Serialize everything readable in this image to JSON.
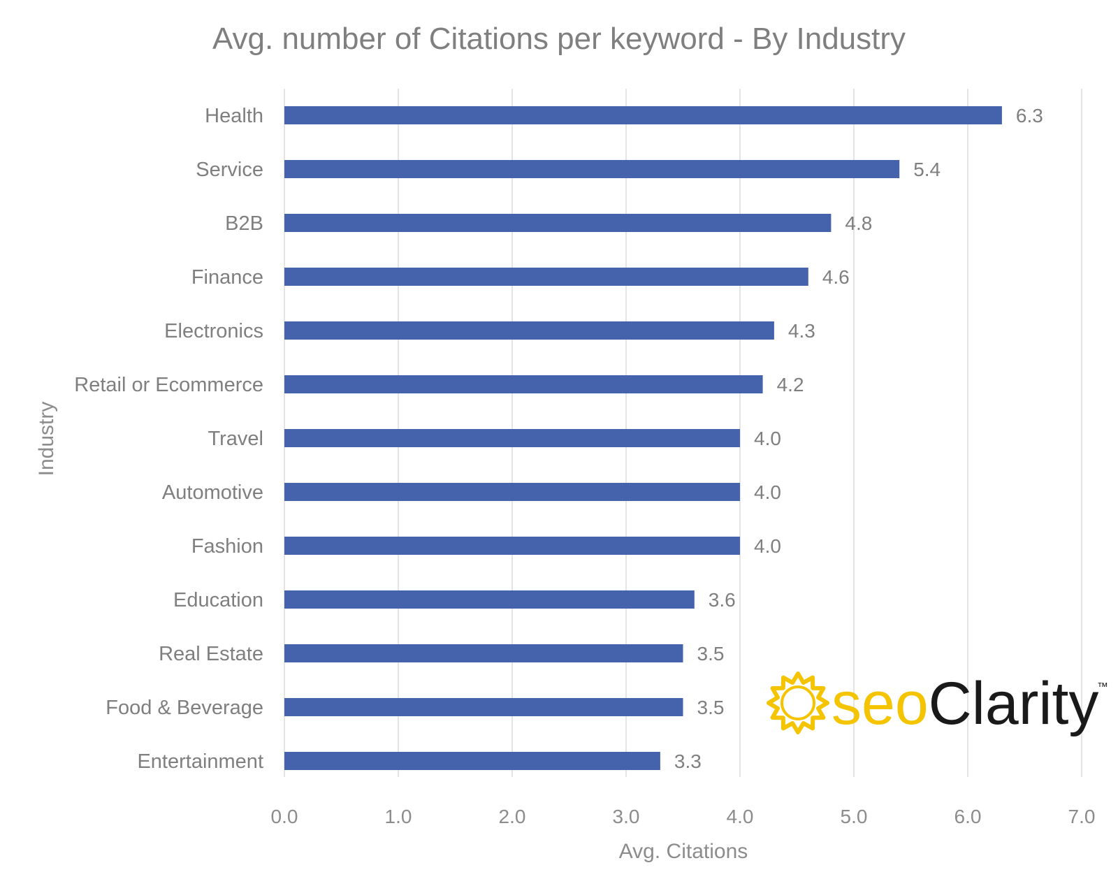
{
  "chart_data": {
    "type": "bar",
    "orientation": "horizontal",
    "title": "Avg. number of Citations per keyword - By Industry",
    "xlabel": "Avg. Citations",
    "ylabel": "Industry",
    "categories": [
      "Health",
      "Service",
      "B2B",
      "Finance",
      "Electronics",
      "Retail or Ecommerce",
      "Travel",
      "Automotive",
      "Fashion",
      "Education",
      "Real Estate",
      "Food & Beverage",
      "Entertainment"
    ],
    "values": [
      6.3,
      5.4,
      4.8,
      4.6,
      4.3,
      4.2,
      4.0,
      4.0,
      4.0,
      3.6,
      3.5,
      3.5,
      3.3
    ],
    "data_labels": [
      "6.3",
      "5.4",
      "4.8",
      "4.6",
      "4.3",
      "4.2",
      "4.0",
      "4.0",
      "4.0",
      "3.6",
      "3.5",
      "3.5",
      "3.3"
    ],
    "xlim": [
      0,
      7
    ],
    "xticks": [
      "0.0",
      "1.0",
      "2.0",
      "3.0",
      "4.0",
      "5.0",
      "6.0",
      "7.0"
    ],
    "grid": "vertical",
    "legend": "none",
    "bar_color": "#4563ad"
  },
  "logo": {
    "part1": "seo",
    "part2": "Clarity",
    "mark": "™",
    "icon": "sun-burst-icon",
    "accent": "#f5c400",
    "dark": "#1a1a1a"
  }
}
